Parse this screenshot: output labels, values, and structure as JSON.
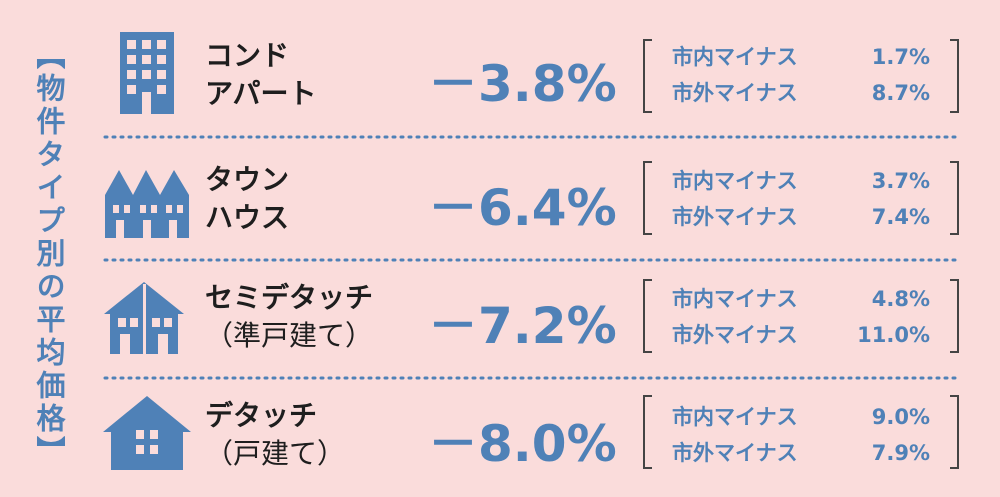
{
  "side_label": "【物件タイプ別の平均価格】",
  "rows": [
    {
      "name": [
        "コンド",
        "アパート"
      ],
      "change": "－3.8%",
      "details": [
        {
          "label": "市内マイナス",
          "value": "1.7%"
        },
        {
          "label": "市外マイナス",
          "value": "8.7%"
        }
      ]
    },
    {
      "name": [
        "タウン",
        "ハウス"
      ],
      "change": "－6.4%",
      "details": [
        {
          "label": "市内マイナス",
          "value": "3.7%"
        },
        {
          "label": "市外マイナス",
          "value": "7.4%"
        }
      ]
    },
    {
      "name": [
        "セミデタッチ",
        "（準戸建て）"
      ],
      "change": "－7.2%",
      "details": [
        {
          "label": "市内マイナス",
          "value": "4.8%"
        },
        {
          "label": "市外マイナス",
          "value": "11.0%"
        }
      ]
    },
    {
      "name": [
        "デタッチ",
        "（戸建て）"
      ],
      "change": "－8.0%",
      "details": [
        {
          "label": "市内マイナス",
          "value": "9.0%"
        },
        {
          "label": "市外マイナス",
          "value": "7.9%"
        }
      ]
    }
  ]
}
